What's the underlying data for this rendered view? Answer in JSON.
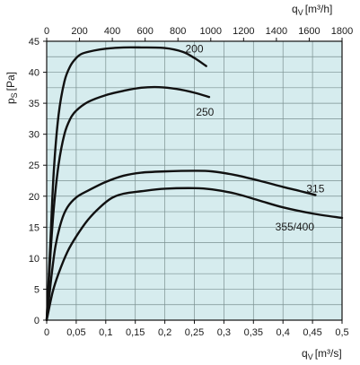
{
  "chart_data": {
    "type": "line",
    "plot_background": "#d6ecee",
    "grid": true,
    "x_bottom": {
      "label_main": "q",
      "label_sub": "V",
      "label_unit": "[m³/s]",
      "range": [
        0,
        0.5
      ],
      "ticks": [
        0,
        0.05,
        0.1,
        0.15,
        0.2,
        0.25,
        0.3,
        0.35,
        0.4,
        0.45,
        0.5
      ],
      "tick_labels": [
        "0",
        "0,05",
        "0,1",
        "0,15",
        "0,2",
        "0,25",
        "0,3",
        "0,35",
        "0,4",
        "0,45",
        "0,5"
      ]
    },
    "x_top": {
      "label_main": "q",
      "label_sub": "V",
      "label_unit": "[m³/h]",
      "range": [
        0,
        1800
      ],
      "ticks": [
        0,
        200,
        400,
        600,
        800,
        1000,
        1200,
        1400,
        1600,
        1800
      ],
      "tick_labels": [
        "0",
        "200",
        "400",
        "600",
        "800",
        "1000",
        "1200",
        "1400",
        "1600",
        "1800"
      ]
    },
    "y": {
      "label_main": "p",
      "label_sub": "S",
      "label_unit": "[Pa]",
      "range": [
        0,
        45
      ],
      "ticks": [
        0,
        5,
        10,
        15,
        20,
        25,
        30,
        35,
        40,
        45
      ],
      "tick_labels": [
        "0",
        "5",
        "10",
        "15",
        "20",
        "25",
        "30",
        "35",
        "40",
        "45"
      ]
    },
    "series": [
      {
        "name": "200",
        "points": [
          [
            0,
            0
          ],
          [
            0.006,
            12
          ],
          [
            0.012,
            24
          ],
          [
            0.02,
            33
          ],
          [
            0.03,
            38.5
          ],
          [
            0.04,
            41
          ],
          [
            0.05,
            42.3
          ],
          [
            0.06,
            43
          ],
          [
            0.08,
            43.5
          ],
          [
            0.1,
            43.8
          ],
          [
            0.13,
            44
          ],
          [
            0.16,
            44
          ],
          [
            0.2,
            43.9
          ],
          [
            0.23,
            43.3
          ],
          [
            0.25,
            42.3
          ],
          [
            0.27,
            41
          ]
        ]
      },
      {
        "name": "250",
        "points": [
          [
            0,
            0
          ],
          [
            0.006,
            10
          ],
          [
            0.012,
            18
          ],
          [
            0.02,
            25
          ],
          [
            0.03,
            30
          ],
          [
            0.04,
            32.5
          ],
          [
            0.05,
            33.8
          ],
          [
            0.07,
            35.2
          ],
          [
            0.1,
            36.3
          ],
          [
            0.13,
            37
          ],
          [
            0.16,
            37.5
          ],
          [
            0.19,
            37.6
          ],
          [
            0.22,
            37.3
          ],
          [
            0.25,
            36.7
          ],
          [
            0.275,
            36
          ]
        ]
      },
      {
        "name": "315",
        "points": [
          [
            0,
            0
          ],
          [
            0.008,
            7
          ],
          [
            0.015,
            12
          ],
          [
            0.025,
            16
          ],
          [
            0.035,
            18.2
          ],
          [
            0.05,
            19.8
          ],
          [
            0.07,
            20.9
          ],
          [
            0.1,
            22.3
          ],
          [
            0.13,
            23.3
          ],
          [
            0.16,
            23.8
          ],
          [
            0.2,
            24
          ],
          [
            0.25,
            24.1
          ],
          [
            0.28,
            24
          ],
          [
            0.32,
            23.4
          ],
          [
            0.36,
            22.5
          ],
          [
            0.4,
            21.5
          ],
          [
            0.43,
            20.8
          ],
          [
            0.455,
            20.2
          ]
        ]
      },
      {
        "name": "355/400",
        "points": [
          [
            0,
            0
          ],
          [
            0.01,
            4.5
          ],
          [
            0.02,
            7.5
          ],
          [
            0.035,
            11
          ],
          [
            0.05,
            13.5
          ],
          [
            0.07,
            16.2
          ],
          [
            0.09,
            18.2
          ],
          [
            0.11,
            19.7
          ],
          [
            0.13,
            20.4
          ],
          [
            0.16,
            20.8
          ],
          [
            0.2,
            21.2
          ],
          [
            0.25,
            21.3
          ],
          [
            0.28,
            21.1
          ],
          [
            0.32,
            20.4
          ],
          [
            0.36,
            19.3
          ],
          [
            0.4,
            18.2
          ],
          [
            0.45,
            17.2
          ],
          [
            0.5,
            16.5
          ]
        ]
      }
    ]
  }
}
